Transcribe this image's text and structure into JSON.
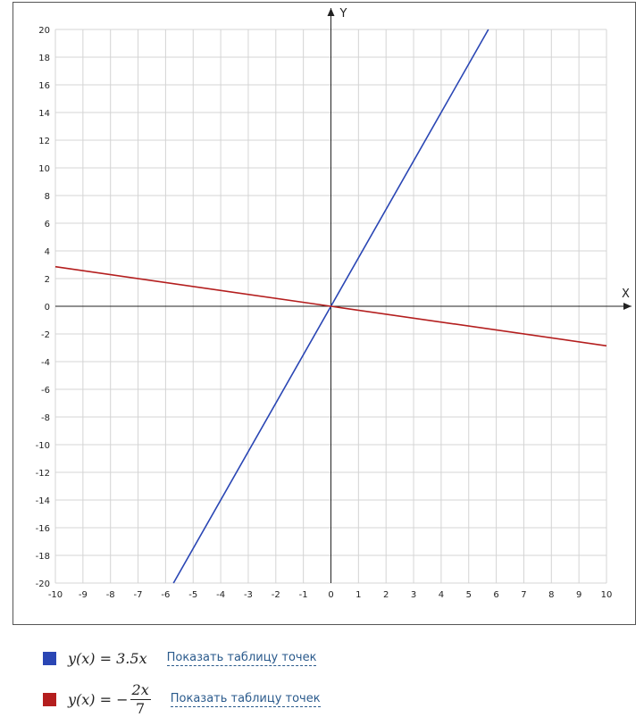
{
  "chart_data": {
    "type": "line",
    "xlabel": "X",
    "ylabel": "Y",
    "xlim": [
      -10,
      10
    ],
    "ylim": [
      -20,
      20
    ],
    "x_ticks": [
      -10,
      -9,
      -8,
      -7,
      -6,
      -5,
      -4,
      -3,
      -2,
      -1,
      0,
      1,
      2,
      3,
      4,
      5,
      6,
      7,
      8,
      9,
      10
    ],
    "y_ticks": [
      -20,
      -18,
      -16,
      -14,
      -12,
      -10,
      -8,
      -6,
      -4,
      -2,
      0,
      2,
      4,
      6,
      8,
      10,
      12,
      14,
      16,
      18,
      20
    ],
    "grid": true,
    "series": [
      {
        "name": "y(x) = 3.5x",
        "color": "#2a46b4",
        "slope": 3.5,
        "x": [
          -5.714,
          0,
          5.714
        ],
        "y": [
          -20,
          0,
          20
        ]
      },
      {
        "name": "y(x) = -2x/7",
        "color": "#b41e1e",
        "slope": -0.2857,
        "x": [
          -10,
          0,
          10
        ],
        "y": [
          2.857,
          0,
          -2.857
        ]
      }
    ]
  },
  "legend": [
    {
      "formula_lhs": "y(x) = 3.5x",
      "color": "#2a46b4",
      "link": "Показать таблицу точек"
    },
    {
      "formula_lhs": "y(x) = −",
      "numerator": "2x",
      "denominator": "7",
      "color": "#b41e1e",
      "link": "Показать таблицу точек"
    }
  ]
}
